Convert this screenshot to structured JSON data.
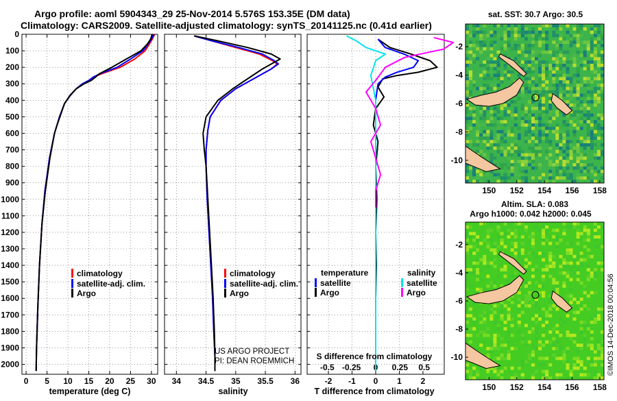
{
  "header": {
    "title_line1": "Argo profile: aoml 5904343_29 25-Nov-2014 5.576S 153.35E (DM data)",
    "title_line2": "Climatology: CARS2009. Satellite-adjusted climatology: synTS_20141125.nc (0.41d earlier)"
  },
  "footer": {
    "project": "US ARGO PROJECT",
    "pi": "PI: DEAN ROEMMICH",
    "imos_stamp": "©IMOS 14-Dec-2018 00:04:56"
  },
  "colors": {
    "climatology": "#ff0000",
    "satellite": "#0000ff",
    "argo": "#000000",
    "sal_satellite": "#00e5ee",
    "sal_argo": "#ff00ff",
    "land": "#f4c7a0",
    "sst_green": "#3cb44b",
    "sla_green": "#44cc22"
  },
  "depth_axis": {
    "ticks": [
      0,
      100,
      200,
      300,
      400,
      500,
      600,
      700,
      800,
      900,
      1000,
      1100,
      1200,
      1300,
      1400,
      1500,
      1600,
      1700,
      1800,
      1900,
      2000
    ],
    "range": [
      0,
      2060
    ]
  },
  "chart_data": [
    {
      "type": "line",
      "id": "temperature",
      "xlabel": "temperature (deg C)",
      "xlim": [
        -1,
        31.5
      ],
      "xticks": [
        0,
        5,
        10,
        15,
        20,
        25,
        30
      ],
      "ylim": [
        2060,
        0
      ],
      "legend_position": "lower-middle",
      "series": [
        {
          "name": "climatology",
          "color": "#ff0000",
          "x": [
            30.8,
            30.2,
            29.5,
            28.5,
            26,
            22.5,
            18,
            16.2,
            15,
            13.5,
            12,
            10.6,
            9.2,
            8,
            7.4,
            6.8,
            5.6,
            4.5,
            3.8,
            3.2,
            2.8,
            2.5,
            2.4
          ],
          "y": [
            0,
            30,
            60,
            100,
            150,
            200,
            240,
            260,
            280,
            300,
            330,
            370,
            420,
            500,
            550,
            600,
            750,
            950,
            1150,
            1400,
            1650,
            1900,
            2040
          ]
        },
        {
          "name": "satellite-adj. clim.",
          "color": "#0000ff",
          "x": [
            30.6,
            30,
            29.2,
            28,
            25,
            21.8,
            17.6,
            16,
            15,
            13.5,
            12,
            10.6,
            9.2,
            8,
            7.4,
            6.8,
            5.6,
            4.5,
            3.8,
            3.2,
            2.8,
            2.5,
            2.4
          ],
          "y": [
            0,
            30,
            60,
            100,
            150,
            200,
            240,
            260,
            280,
            300,
            330,
            370,
            420,
            500,
            550,
            600,
            750,
            950,
            1150,
            1400,
            1650,
            1900,
            2040
          ]
        },
        {
          "name": "Argo",
          "color": "#000000",
          "x": [
            30.2,
            29.8,
            29,
            27.5,
            24,
            20.5,
            17.5,
            16.6,
            15.6,
            13.9,
            12,
            10.5,
            9.2,
            8.1,
            7.4,
            6.8,
            5.7,
            4.6,
            3.8,
            3.2,
            2.8,
            2.5,
            2.4
          ],
          "y": [
            0,
            30,
            60,
            100,
            150,
            200,
            240,
            260,
            280,
            300,
            330,
            370,
            420,
            500,
            550,
            600,
            750,
            950,
            1150,
            1400,
            1650,
            1900,
            2040
          ]
        }
      ],
      "legend": [
        "climatology",
        "satellite-adj. clim.",
        "Argo"
      ]
    },
    {
      "type": "line",
      "id": "salinity",
      "xlabel": "salinity",
      "xlim": [
        33.8,
        36.1
      ],
      "xticks": [
        34,
        34.5,
        35,
        35.5,
        36
      ],
      "ylim": [
        2060,
        0
      ],
      "legend_position": "lower-middle",
      "series": [
        {
          "name": "climatology",
          "color": "#ff0000",
          "x": [
            34.3,
            34.6,
            35.0,
            35.4,
            35.62,
            35.7,
            35.6,
            35.3,
            35.0,
            34.75,
            34.57,
            34.53,
            34.5,
            34.5,
            34.52,
            34.55,
            34.58,
            34.61,
            34.63,
            34.65,
            34.65
          ],
          "y": [
            10,
            40,
            80,
            120,
            160,
            180,
            210,
            270,
            330,
            400,
            500,
            580,
            700,
            800,
            1000,
            1200,
            1400,
            1600,
            1800,
            1950,
            2040
          ]
        },
        {
          "name": "satellite-adj. clim.",
          "color": "#0000ff",
          "x": [
            34.3,
            34.6,
            35.05,
            35.45,
            35.65,
            35.72,
            35.6,
            35.3,
            35.0,
            34.75,
            34.57,
            34.53,
            34.5,
            34.5,
            34.52,
            34.55,
            34.58,
            34.61,
            34.63,
            34.65,
            34.65
          ],
          "y": [
            10,
            40,
            80,
            120,
            160,
            180,
            210,
            270,
            330,
            400,
            500,
            580,
            700,
            800,
            1000,
            1200,
            1400,
            1600,
            1800,
            1950,
            2040
          ]
        },
        {
          "name": "Argo",
          "color": "#000000",
          "x": [
            34.3,
            34.7,
            35.2,
            35.6,
            35.75,
            35.65,
            35.45,
            35.2,
            34.95,
            34.7,
            34.5,
            34.45,
            34.47,
            34.5,
            34.53,
            34.56,
            34.59,
            34.62,
            34.64,
            34.65,
            34.65
          ],
          "y": [
            10,
            40,
            80,
            120,
            150,
            170,
            210,
            270,
            330,
            400,
            500,
            600,
            700,
            800,
            1000,
            1200,
            1400,
            1600,
            1800,
            1950,
            2040
          ]
        }
      ],
      "legend": [
        "climatology",
        "satellite-adj. clim.",
        "Argo"
      ]
    },
    {
      "type": "line",
      "id": "difference",
      "xlabel": "T difference from climatology",
      "xlabel_top": "S difference from climatology",
      "xlim": [
        -2.9,
        2.9
      ],
      "xticks": [
        -2,
        -1,
        0,
        1,
        2
      ],
      "xticks_sal": [
        -0.5,
        -0.25,
        0,
        0.25,
        0.5
      ],
      "xticks_sal_labels": [
        "-0.5",
        "-0.25",
        "0",
        "0.25",
        "0.5"
      ],
      "ylim": [
        2060,
        0
      ],
      "legend_temperature_title": "temperature",
      "legend_salinity_title": "salinity",
      "series": [
        {
          "name": "Argo T",
          "group": "temperature",
          "label": "Argo",
          "color": "#000000",
          "x": [
            0.1,
            0.6,
            1.5,
            2.3,
            2.6,
            1.8,
            0.9,
            0.3,
            0.1,
            0.35,
            0,
            -0.1,
            0.1,
            0,
            0.05,
            0,
            0.03,
            0,
            0,
            0
          ],
          "y": [
            30,
            80,
            120,
            160,
            200,
            230,
            250,
            270,
            320,
            380,
            450,
            550,
            650,
            800,
            1000,
            1200,
            1400,
            1600,
            1800,
            2000
          ]
        },
        {
          "name": "satellite T",
          "group": "temperature",
          "label": "satellite",
          "color": "#0000ff",
          "x": [
            0.1,
            0.4,
            1.2,
            1.8,
            1.6,
            0.9,
            0.4,
            0.1,
            0,
            0,
            0,
            0,
            0,
            0,
            0,
            0
          ],
          "y": [
            30,
            80,
            120,
            160,
            200,
            230,
            260,
            300,
            400,
            600,
            800,
            1000,
            1200,
            1500,
            1800,
            2040
          ]
        },
        {
          "name": "satellite S",
          "group": "salinity",
          "label": "satellite",
          "color": "#00e5ee",
          "x": [
            -0.3,
            -0.2,
            -0.1,
            0.1,
            0.0,
            -0.05,
            0,
            0,
            0,
            0,
            0,
            0,
            0,
            0
          ],
          "y": [
            10,
            40,
            80,
            120,
            160,
            250,
            400,
            600,
            800,
            1000,
            1300,
            1600,
            1900,
            2040
          ]
        },
        {
          "name": "Argo S",
          "group": "salinity",
          "label": "Argo",
          "color": "#ff00ff",
          "x": [
            0.6,
            0.8,
            0.7,
            0.3,
            0.1,
            0,
            -0.1,
            0,
            0.05,
            -0.05,
            0.0,
            0.05,
            0,
            0
          ],
          "y": [
            20,
            50,
            90,
            140,
            200,
            280,
            350,
            450,
            550,
            650,
            750,
            850,
            950,
            1050
          ]
        }
      ]
    },
    {
      "type": "heatmap",
      "id": "sst_map",
      "title": "sat. SST: 30.7 Argo: 30.5",
      "xticks": [
        150,
        152,
        154,
        156,
        158
      ],
      "yticks": [
        -2,
        -4,
        -6,
        -8,
        -10
      ],
      "xlim": [
        148.3,
        158.3
      ],
      "ylim": [
        -11.6,
        -0.4
      ],
      "argo_position": {
        "lon": 153.35,
        "lat": -5.576
      }
    },
    {
      "type": "heatmap",
      "id": "sla_map",
      "title": "Altim. SLA: 0.083",
      "subtitle": "Argo h1000: 0.042 h2000: 0.045",
      "xticks": [
        150,
        152,
        154,
        156,
        158
      ],
      "yticks": [
        -2,
        -4,
        -6,
        -8,
        -10
      ],
      "xlim": [
        148.3,
        158.3
      ],
      "ylim": [
        -11.6,
        -0.4
      ],
      "argo_position": {
        "lon": 153.35,
        "lat": -5.576
      }
    }
  ]
}
